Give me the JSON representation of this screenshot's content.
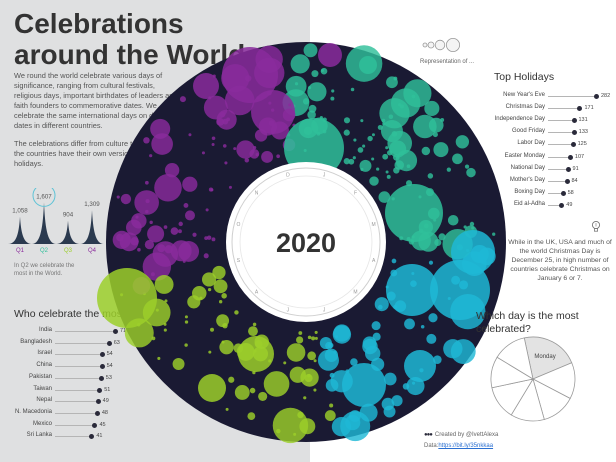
{
  "title": "Celebrations around the World",
  "intro": [
    "We round the world celebrate various days of significance, ranging from cultural festivals, religious days, important birthdates of leaders and faith founders to commemorative dates. We celebrate the same international days on different dates in different countries.",
    "The celebrations differ from culture to culture. All of the countries have their own versions of these holidays."
  ],
  "center_label": "2020",
  "legend_text": "Representation of ...",
  "tip_text": "While in the UK, USA and much of the world Christmas Day is December 25, in high number of countries celebrate Christmas on January 6 or 7.",
  "q_note": "In Q2 we celebrate the most in the World.",
  "credit": {
    "line1": "Created by @IvettAlexa",
    "line2_prefix": "Data:",
    "line2_link": "https://bit.ly/35nkkaa"
  },
  "headings": {
    "who": "Who celebrate the most?",
    "top": "Top Holidays",
    "which": "Which day is the most celebrated?"
  },
  "colors": {
    "purple": "#8a2b9c",
    "teal": "#2fbf9a",
    "cyan": "#1fb8d6",
    "lime": "#9ccf2a",
    "ring": "#1a1a33"
  },
  "chart_data": [
    {
      "type": "bar",
      "name": "quarters",
      "categories": [
        "Q1",
        "Q2",
        "Q3",
        "Q4"
      ],
      "values": [
        1058,
        1607,
        904,
        1309
      ],
      "value_labels": [
        "1,058",
        "1,607",
        "904",
        "1,309"
      ],
      "highlight": "Q2",
      "colors": [
        "#8a2b9c",
        "#2fbf9a",
        "#9ccf2a",
        "#8a2b9c"
      ]
    },
    {
      "type": "bar",
      "name": "countries",
      "title": "Who celebrate the most?",
      "categories": [
        "India",
        "Bangladesh",
        "Israel",
        "China",
        "Pakistan",
        "Taiwan",
        "Nepal",
        "N. Macedonia",
        "Mexico",
        "Sri Lanka"
      ],
      "values": [
        71,
        63,
        54,
        54,
        53,
        51,
        49,
        48,
        45,
        41
      ]
    },
    {
      "type": "bar",
      "name": "holidays",
      "title": "Top Holidays",
      "categories": [
        "New Year's Eve",
        "Christmas Day",
        "Independence Day",
        "Good Friday",
        "Labor Day",
        "Easter Monday",
        "National Day",
        "Mother's Day",
        "Boxing Day",
        "Eid al-Adha"
      ],
      "values": [
        282,
        171,
        131,
        133,
        125,
        107,
        91,
        84,
        58,
        49
      ]
    },
    {
      "type": "pie",
      "name": "weekdays",
      "title": "Which day is the most celebrated?",
      "labels": [
        "Monday",
        "",
        "",
        "",
        "",
        "",
        ""
      ],
      "values": [
        22,
        14,
        13,
        13,
        13,
        12,
        13
      ],
      "highlight": "Monday"
    },
    {
      "type": "scatter",
      "name": "year-ring",
      "title": "2020",
      "month_labels": [
        "J",
        "F",
        "M",
        "A",
        "M",
        "J",
        "J",
        "A",
        "S",
        "O",
        "N",
        "D"
      ]
    }
  ]
}
